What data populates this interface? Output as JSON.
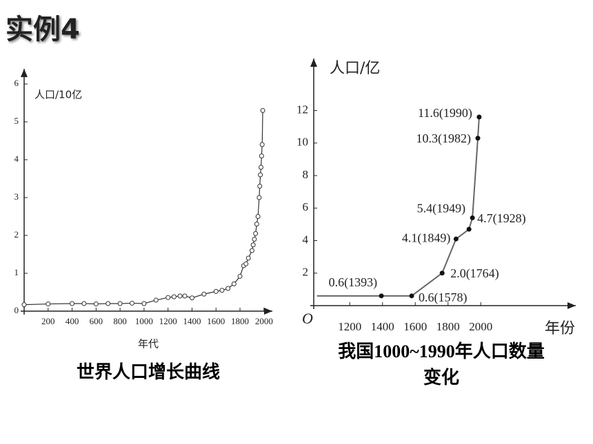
{
  "slide": {
    "title": "实例4"
  },
  "chart_data": [
    {
      "type": "line",
      "title": "世界人口增长曲线",
      "y_label": "人口/10亿",
      "x_label": "年代",
      "marker": "open-circle",
      "color": "#333333",
      "x": [
        0,
        200,
        400,
        500,
        600,
        700,
        800,
        900,
        1000,
        1100,
        1200,
        1250,
        1300,
        1340,
        1400,
        1500,
        1600,
        1650,
        1700,
        1750,
        1800,
        1830,
        1850,
        1870,
        1900,
        1910,
        1920,
        1930,
        1940,
        1950,
        1960,
        1965,
        1970,
        1975,
        1980,
        1985,
        1990
      ],
      "values": [
        0.17,
        0.19,
        0.2,
        0.2,
        0.19,
        0.2,
        0.2,
        0.21,
        0.2,
        0.29,
        0.36,
        0.38,
        0.4,
        0.4,
        0.35,
        0.45,
        0.52,
        0.55,
        0.6,
        0.72,
        0.92,
        1.2,
        1.25,
        1.4,
        1.6,
        1.75,
        1.9,
        2.05,
        2.3,
        2.5,
        3.0,
        3.3,
        3.6,
        3.8,
        4.1,
        4.4,
        5.3
      ],
      "xlim": [
        0,
        2070
      ],
      "ylim": [
        0,
        6.4
      ],
      "xticks": [
        200,
        400,
        600,
        800,
        1000,
        1200,
        1400,
        1600,
        1800,
        2000
      ],
      "yticks": [
        0,
        1,
        2,
        3,
        4,
        5,
        6
      ]
    },
    {
      "type": "line",
      "title": "我国1000~1990年人口数量变化",
      "y_label": "人口/亿",
      "x_label": "年份",
      "origin_label": "O",
      "marker": "dot",
      "color": "#666666",
      "x": [
        1000,
        1393,
        1578,
        1764,
        1849,
        1928,
        1949,
        1982,
        1990
      ],
      "values": [
        0.6,
        0.6,
        0.6,
        2.0,
        4.1,
        4.7,
        5.4,
        10.3,
        11.6
      ],
      "value_labels": [
        null,
        "0.6(1393)",
        "0.6(1578)",
        "2.0(1764)",
        "4.1(1849)",
        "4.7(1928)",
        "5.4(1949)",
        "10.3(1982)",
        "11.6(1990)"
      ],
      "xlim": [
        980,
        2580
      ],
      "ylim": [
        0,
        15.2
      ],
      "xticks": [
        1200,
        1400,
        1600,
        1800,
        2000
      ],
      "yticks": [
        2,
        4,
        6,
        8,
        10,
        12
      ]
    }
  ]
}
